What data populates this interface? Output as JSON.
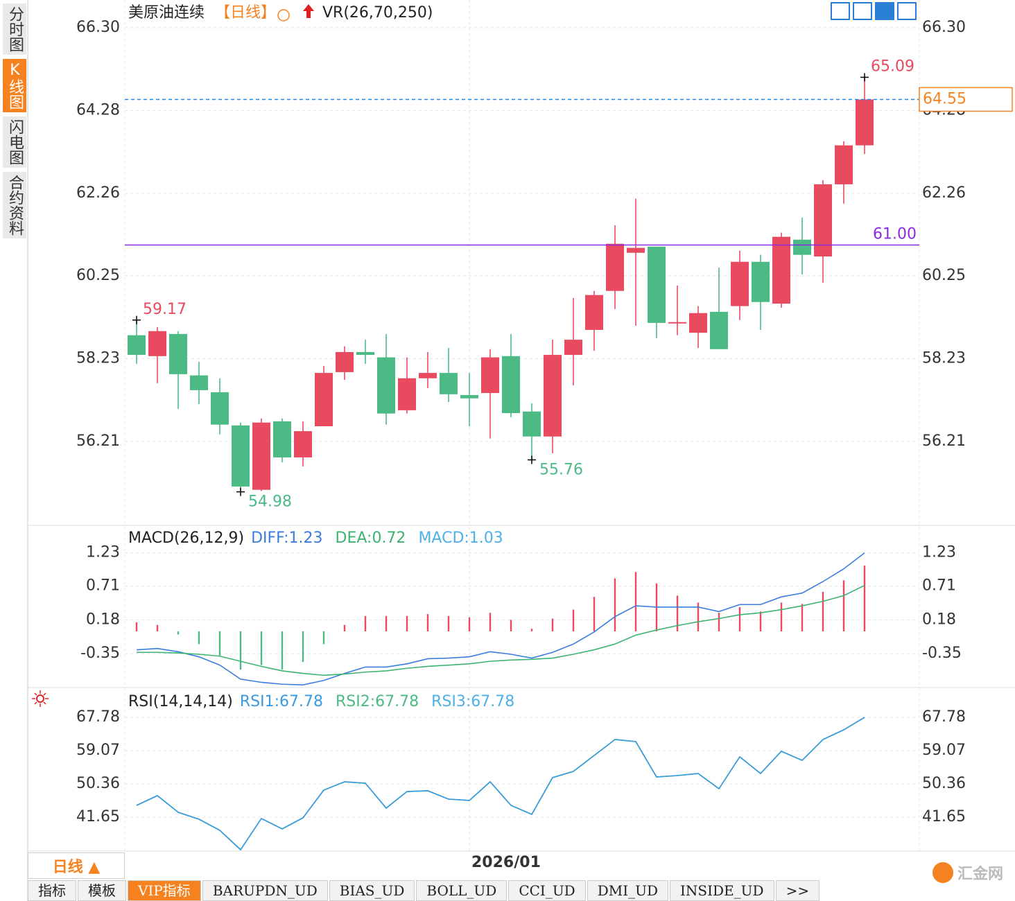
{
  "sidebar": [
    "分时图",
    "K线图",
    "闪电图",
    "合约资料"
  ],
  "chart_data": [
    {
      "type": "candlestick",
      "title": "美原油连续",
      "period": "【日线】",
      "indicator": "VR(26,70,250)",
      "categories": [
        null,
        null,
        null,
        null,
        null,
        null,
        null,
        null,
        null,
        null,
        null,
        null,
        null,
        null,
        null,
        null,
        "2026/01",
        null,
        null,
        null,
        null,
        null,
        null,
        null,
        null,
        null,
        null,
        null,
        null,
        null,
        null,
        null,
        null,
        null,
        null,
        null
      ],
      "open": [
        58.8,
        58.29,
        58.83,
        57.82,
        57.41,
        56.6,
        55.03,
        56.7,
        55.82,
        56.58,
        57.9,
        58.39,
        58.26,
        56.97,
        57.75,
        57.88,
        57.34,
        57.39,
        58.29,
        56.94,
        56.33,
        58.32,
        58.93,
        59.88,
        60.81,
        60.96,
        59.1,
        58.86,
        59.37,
        59.51,
        60.59,
        59.57,
        61.13,
        60.72,
        62.48,
        63.43
      ],
      "high": [
        59.17,
        59.0,
        58.9,
        58.15,
        57.75,
        56.67,
        56.77,
        56.77,
        56.7,
        58.05,
        58.53,
        58.69,
        58.83,
        58.26,
        58.39,
        58.49,
        57.88,
        58.46,
        58.83,
        57.14,
        58.69,
        59.71,
        59.88,
        61.48,
        62.13,
        60.96,
        60.01,
        59.51,
        60.45,
        60.86,
        60.76,
        61.3,
        61.67,
        62.58,
        63.53,
        65.09
      ],
      "low": [
        58.1,
        57.63,
        57.0,
        57.12,
        56.38,
        54.98,
        55.0,
        55.7,
        55.6,
        56.58,
        57.71,
        58.1,
        56.62,
        56.89,
        57.51,
        57.17,
        56.58,
        56.28,
        56.8,
        55.76,
        55.92,
        57.58,
        58.42,
        59.44,
        59.03,
        58.73,
        58.8,
        58.49,
        58.46,
        59.17,
        58.93,
        59.47,
        60.28,
        60.08,
        62.01,
        63.22
      ],
      "close": [
        58.32,
        58.9,
        57.85,
        57.46,
        56.62,
        55.11,
        56.67,
        55.82,
        56.46,
        57.88,
        58.39,
        58.32,
        56.89,
        57.75,
        57.88,
        57.36,
        57.26,
        58.26,
        56.9,
        56.33,
        58.32,
        58.69,
        59.78,
        61.03,
        60.93,
        59.1,
        59.12,
        59.34,
        58.46,
        60.59,
        59.61,
        61.2,
        60.76,
        62.48,
        63.43,
        64.55
      ],
      "up_color": "#e84a5f",
      "down_color": "#4cba84",
      "ylim": [
        54.18,
        66.89
      ],
      "yticks": [
        {
          "value": 66.3,
          "label": "66.30"
        },
        64.28,
        62.26,
        60.25,
        58.23,
        56.21
      ],
      "grid": true,
      "last_price": 64.55,
      "last_price_color": "#f6821f",
      "last_price_line_color": "#1e88e5",
      "reference_line": {
        "value": 61,
        "label": "61.00"
      },
      "reference_color": "#8a2be2",
      "extreme_labels": [
        59.17,
        54.98,
        55.76,
        65.09
      ]
    },
    {
      "type": "macd",
      "title": "MACD(26,12,9)",
      "ylim": [
        -0.86,
        1.64
      ],
      "yticks": [
        1.23,
        0.71,
        0.18,
        -0.35
      ],
      "grid": true,
      "series": [
        {
          "name": "DIFF:1.23",
          "color": "#3b7ddd",
          "type": "line",
          "values": [
            -0.29,
            -0.27,
            -0.32,
            -0.4,
            -0.53,
            -0.75,
            -0.8,
            -0.83,
            -0.84,
            -0.77,
            -0.66,
            -0.56,
            -0.56,
            -0.51,
            -0.43,
            -0.42,
            -0.4,
            -0.32,
            -0.36,
            -0.42,
            -0.33,
            -0.2,
            -0.01,
            0.23,
            0.4,
            0.38,
            0.38,
            0.38,
            0.31,
            0.42,
            0.42,
            0.54,
            0.6,
            0.78,
            0.98,
            1.23
          ]
        },
        {
          "name": "DEA:0.72",
          "color": "#3cb371",
          "type": "line",
          "values": [
            -0.33,
            -0.33,
            -0.34,
            -0.36,
            -0.39,
            -0.47,
            -0.55,
            -0.62,
            -0.66,
            -0.69,
            -0.67,
            -0.64,
            -0.62,
            -0.58,
            -0.55,
            -0.53,
            -0.51,
            -0.47,
            -0.45,
            -0.44,
            -0.42,
            -0.36,
            -0.29,
            -0.2,
            -0.06,
            0.02,
            0.09,
            0.15,
            0.2,
            0.26,
            0.29,
            0.34,
            0.4,
            0.47,
            0.56,
            0.72
          ]
        },
        {
          "name": "MACD:1.03",
          "color": "#4fb0e8",
          "type": "bar",
          "positive_color": "#e84a5f",
          "negative_color": "#4cba84",
          "values": [
            0.14,
            0.1,
            -0.05,
            -0.2,
            -0.38,
            -0.6,
            -0.53,
            -0.6,
            -0.48,
            -0.2,
            0.1,
            0.24,
            0.24,
            0.24,
            0.27,
            0.24,
            0.22,
            0.29,
            0.18,
            0.04,
            0.2,
            0.34,
            0.54,
            0.83,
            0.93,
            0.75,
            0.56,
            0.45,
            0.29,
            0.38,
            0.31,
            0.45,
            0.43,
            0.62,
            0.8,
            1.03
          ]
        }
      ]
    },
    {
      "type": "line",
      "title": "RSI(14,14,14)",
      "ylim": [
        32.76,
        75.04
      ],
      "yticks": [
        67.78,
        59.07,
        50.36,
        41.65
      ],
      "grid": true,
      "series": [
        {
          "name": "RSI1:67.78",
          "color": "#3a9ae0",
          "values": [
            44.74,
            47.28,
            42.92,
            41.11,
            38.2,
            33.12,
            41.29,
            38.57,
            41.47,
            48.73,
            50.9,
            50.54,
            44.01,
            48.36,
            48.55,
            46.37,
            46.01,
            50.9,
            44.74,
            42.38,
            52.0,
            53.63,
            57.8,
            61.97,
            61.43,
            52.17,
            52.54,
            53.08,
            49.09,
            57.44,
            53.08,
            58.89,
            56.53,
            61.97,
            64.51,
            67.78
          ]
        },
        {
          "name": "RSI2:67.78",
          "color": "#4cba84",
          "values": [
            44.74,
            47.28,
            42.92,
            41.11,
            38.2,
            33.12,
            41.29,
            38.57,
            41.47,
            48.73,
            50.9,
            50.54,
            44.01,
            48.36,
            48.55,
            46.37,
            46.01,
            50.9,
            44.74,
            42.38,
            52.0,
            53.63,
            57.8,
            61.97,
            61.43,
            52.17,
            52.54,
            53.08,
            49.09,
            57.44,
            53.08,
            58.89,
            56.53,
            61.97,
            64.51,
            67.78
          ]
        },
        {
          "name": "RSI3:67.78",
          "color": "#4fb0e8",
          "values": [
            44.74,
            47.28,
            42.92,
            41.11,
            38.2,
            33.12,
            41.29,
            38.57,
            41.47,
            48.73,
            50.9,
            50.54,
            44.01,
            48.36,
            48.55,
            46.37,
            46.01,
            50.9,
            44.74,
            42.38,
            52.0,
            53.63,
            57.8,
            61.97,
            61.43,
            52.17,
            52.54,
            53.08,
            49.09,
            57.44,
            53.08,
            58.89,
            56.53,
            61.97,
            64.51,
            67.78
          ]
        }
      ]
    }
  ],
  "footer": {
    "period_button": "日线 ▲",
    "tabs": [
      "指标",
      "模板",
      "VIP指标",
      "BARUPDN_UD",
      "BIAS_UD",
      "BOLL_UD",
      "CCI_UD",
      "DMI_UD",
      "INSIDE_UD",
      ">>"
    ],
    "logo": "汇金网"
  }
}
